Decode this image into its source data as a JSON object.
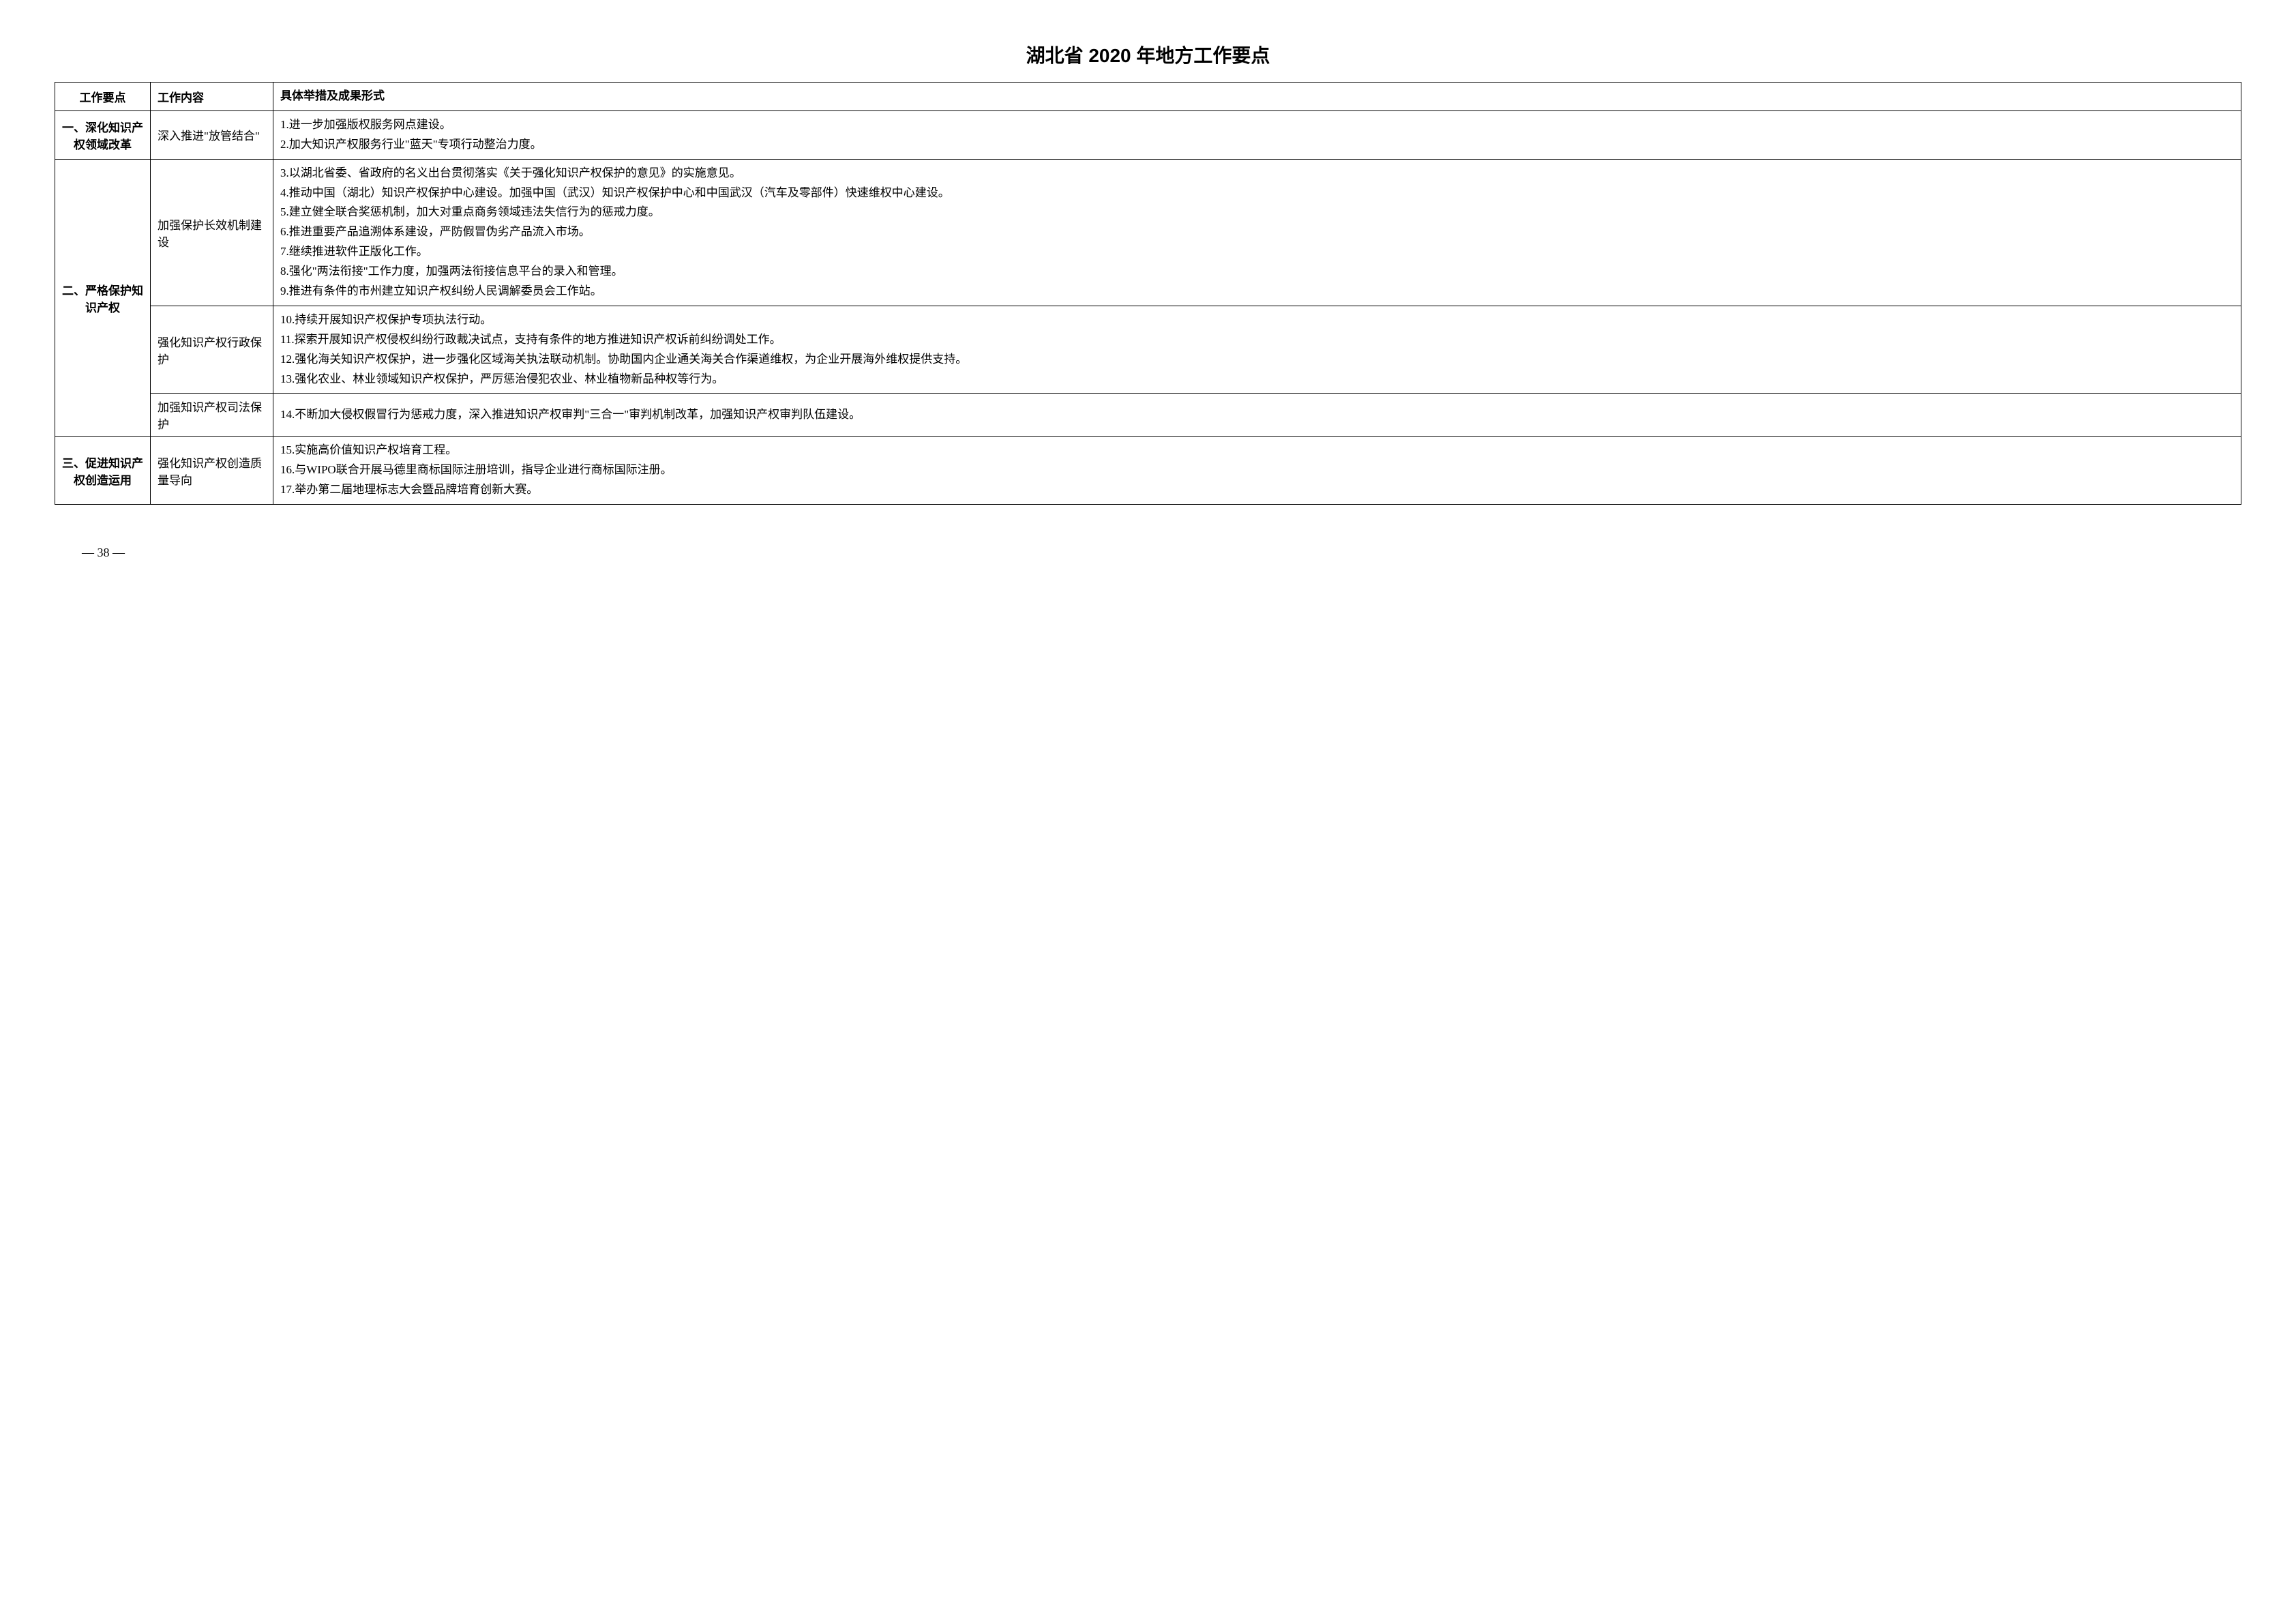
{
  "title": "湖北省 2020 年地方工作要点",
  "headers": {
    "col1": "工作要点",
    "col2": "工作内容",
    "col3": "具体举措及成果形式"
  },
  "rows": [
    {
      "section": "一、深化知识产权领域改革",
      "section_rowspan": 1,
      "content": "深入推进\"放管结合\"",
      "detail": "1.进一步加强版权服务网点建设。\n2.加大知识产权服务行业\"蓝天\"专项行动整治力度。"
    },
    {
      "section": "二、严格保护知识产权",
      "section_rowspan": 3,
      "content": "加强保护长效机制建设",
      "detail": "3.以湖北省委、省政府的名义出台贯彻落实《关于强化知识产权保护的意见》的实施意见。\n4.推动中国（湖北）知识产权保护中心建设。加强中国（武汉）知识产权保护中心和中国武汉（汽车及零部件）快速维权中心建设。\n5.建立健全联合奖惩机制，加大对重点商务领域违法失信行为的惩戒力度。\n6.推进重要产品追溯体系建设，严防假冒伪劣产品流入市场。\n7.继续推进软件正版化工作。\n8.强化\"两法衔接\"工作力度，加强两法衔接信息平台的录入和管理。\n9.推进有条件的市州建立知识产权纠纷人民调解委员会工作站。"
    },
    {
      "content": "强化知识产权行政保护",
      "detail": "10.持续开展知识产权保护专项执法行动。\n11.探索开展知识产权侵权纠纷行政裁决试点，支持有条件的地方推进知识产权诉前纠纷调处工作。\n12.强化海关知识产权保护，进一步强化区域海关执法联动机制。协助国内企业通关海关合作渠道维权，为企业开展海外维权提供支持。\n13.强化农业、林业领域知识产权保护，严厉惩治侵犯农业、林业植物新品种权等行为。"
    },
    {
      "content": "加强知识产权司法保护",
      "detail": "14.不断加大侵权假冒行为惩戒力度，深入推进知识产权审判\"三合一\"审判机制改革，加强知识产权审判队伍建设。"
    },
    {
      "section": "三、促进知识产权创造运用",
      "section_rowspan": 1,
      "content": "强化知识产权创造质量导向",
      "detail": "15.实施高价值知识产权培育工程。\n16.与WIPO联合开展马德里商标国际注册培训，指导企业进行商标国际注册。\n17.举办第二届地理标志大会暨品牌培育创新大赛。"
    }
  ],
  "page_number": "— 38 —"
}
